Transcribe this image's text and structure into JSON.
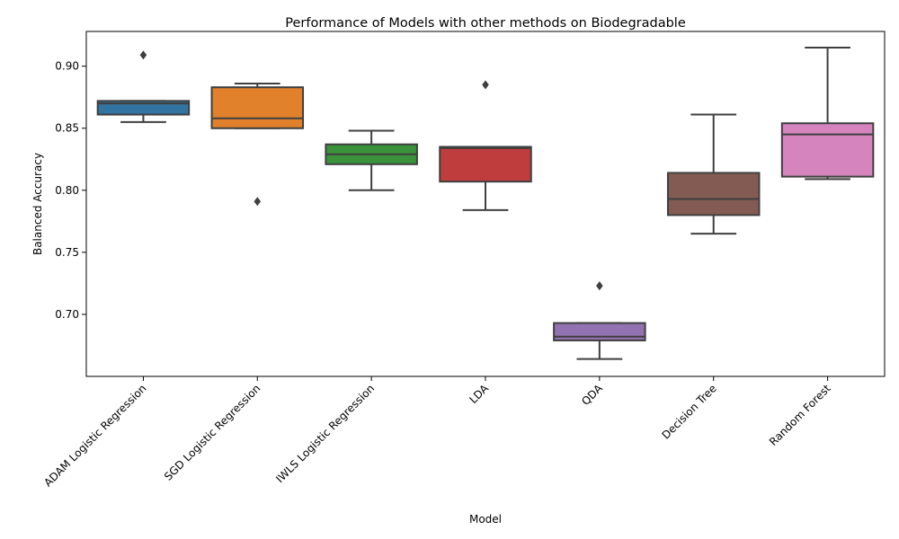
{
  "chart_data": {
    "type": "box",
    "title": "Performance of Models with other methods on Biodegradable",
    "xlabel": "Model",
    "ylabel": "Balanced Accuracy",
    "ylim": [
      0.65,
      0.928
    ],
    "yticks": [
      0.7,
      0.75,
      0.8,
      0.85,
      0.9
    ],
    "ytick_labels": [
      "0.70",
      "0.75",
      "0.80",
      "0.85",
      "0.90"
    ],
    "grid": false,
    "series": [
      {
        "name": "ADAM Logistic Regression",
        "color": "#3274a1",
        "whisker_low": 0.855,
        "q1": 0.861,
        "median": 0.87,
        "q3": 0.872,
        "whisker_high": 0.872,
        "outliers": [
          0.909
        ]
      },
      {
        "name": "SGD Logistic Regression",
        "color": "#e1812c",
        "whisker_low": 0.85,
        "q1": 0.85,
        "median": 0.858,
        "q3": 0.883,
        "whisker_high": 0.886,
        "outliers": [
          0.791
        ]
      },
      {
        "name": "IWLS Logistic Regression",
        "color": "#3a923a",
        "whisker_low": 0.8,
        "q1": 0.821,
        "median": 0.829,
        "q3": 0.837,
        "whisker_high": 0.848,
        "outliers": []
      },
      {
        "name": "LDA",
        "color": "#c03d3e",
        "whisker_low": 0.784,
        "q1": 0.807,
        "median": 0.834,
        "q3": 0.835,
        "whisker_high": 0.835,
        "outliers": [
          0.885
        ]
      },
      {
        "name": "QDA",
        "color": "#9372b2",
        "whisker_low": 0.664,
        "q1": 0.679,
        "median": 0.682,
        "q3": 0.693,
        "whisker_high": 0.693,
        "outliers": [
          0.723
        ]
      },
      {
        "name": "Decision Tree",
        "color": "#845b53",
        "whisker_low": 0.765,
        "q1": 0.78,
        "median": 0.793,
        "q3": 0.814,
        "whisker_high": 0.861,
        "outliers": []
      },
      {
        "name": "Random Forest",
        "color": "#d684bd",
        "whisker_low": 0.809,
        "q1": 0.811,
        "median": 0.845,
        "q3": 0.854,
        "whisker_high": 0.915,
        "outliers": []
      }
    ]
  }
}
